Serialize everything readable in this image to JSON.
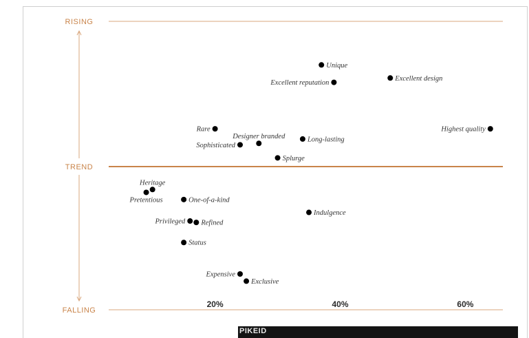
{
  "chart_data": {
    "type": "scatter",
    "title": "",
    "xlabel": "",
    "ylabel": "",
    "y_labels": {
      "top": "RISING",
      "middle": "TREND",
      "bottom": "FALLING"
    },
    "x_ticks": [
      {
        "value": 20,
        "label": "20%"
      },
      {
        "value": 40,
        "label": "40%"
      },
      {
        "value": 60,
        "label": "60%"
      }
    ],
    "xlim": [
      3,
      66
    ],
    "ylim": [
      -100,
      100
    ],
    "grid": false,
    "colors": {
      "axis": "#c9844a",
      "point": "#000000"
    },
    "points": [
      {
        "label": "Unique",
        "x": 37,
        "y": 70,
        "label_side": "right"
      },
      {
        "label": "Excellent reputation",
        "x": 39,
        "y": 58,
        "label_side": "left"
      },
      {
        "label": "Excellent design",
        "x": 48,
        "y": 61,
        "label_side": "right"
      },
      {
        "label": "Highest quality",
        "x": 64,
        "y": 26,
        "label_side": "left"
      },
      {
        "label": "Rare",
        "x": 20,
        "y": 26,
        "label_side": "left"
      },
      {
        "label": "Designer branded",
        "x": 27,
        "y": 16,
        "label_side": "above"
      },
      {
        "label": "Sophisticated",
        "x": 24,
        "y": 15,
        "label_side": "left"
      },
      {
        "label": "Long-lasting",
        "x": 34,
        "y": 19,
        "label_side": "right"
      },
      {
        "label": "Splurge",
        "x": 30,
        "y": 6,
        "label_side": "right"
      },
      {
        "label": "Heritage",
        "x": 10,
        "y": -16,
        "label_side": "above"
      },
      {
        "label": "Pretentious",
        "x": 9,
        "y": -18,
        "label_side": "below"
      },
      {
        "label": "One-of-a-kind",
        "x": 15,
        "y": -23,
        "label_side": "right"
      },
      {
        "label": "Indulgence",
        "x": 35,
        "y": -32,
        "label_side": "right"
      },
      {
        "label": "Privileged",
        "x": 16,
        "y": -38,
        "label_side": "left"
      },
      {
        "label": "Refined",
        "x": 17,
        "y": -39,
        "label_side": "right"
      },
      {
        "label": "Status",
        "x": 15,
        "y": -53,
        "label_side": "right"
      },
      {
        "label": "Expensive",
        "x": 24,
        "y": -75,
        "label_side": "left"
      },
      {
        "label": "Exclusive",
        "x": 25,
        "y": -80,
        "label_side": "right"
      }
    ]
  },
  "footer": {
    "text": "PIKEID"
  }
}
